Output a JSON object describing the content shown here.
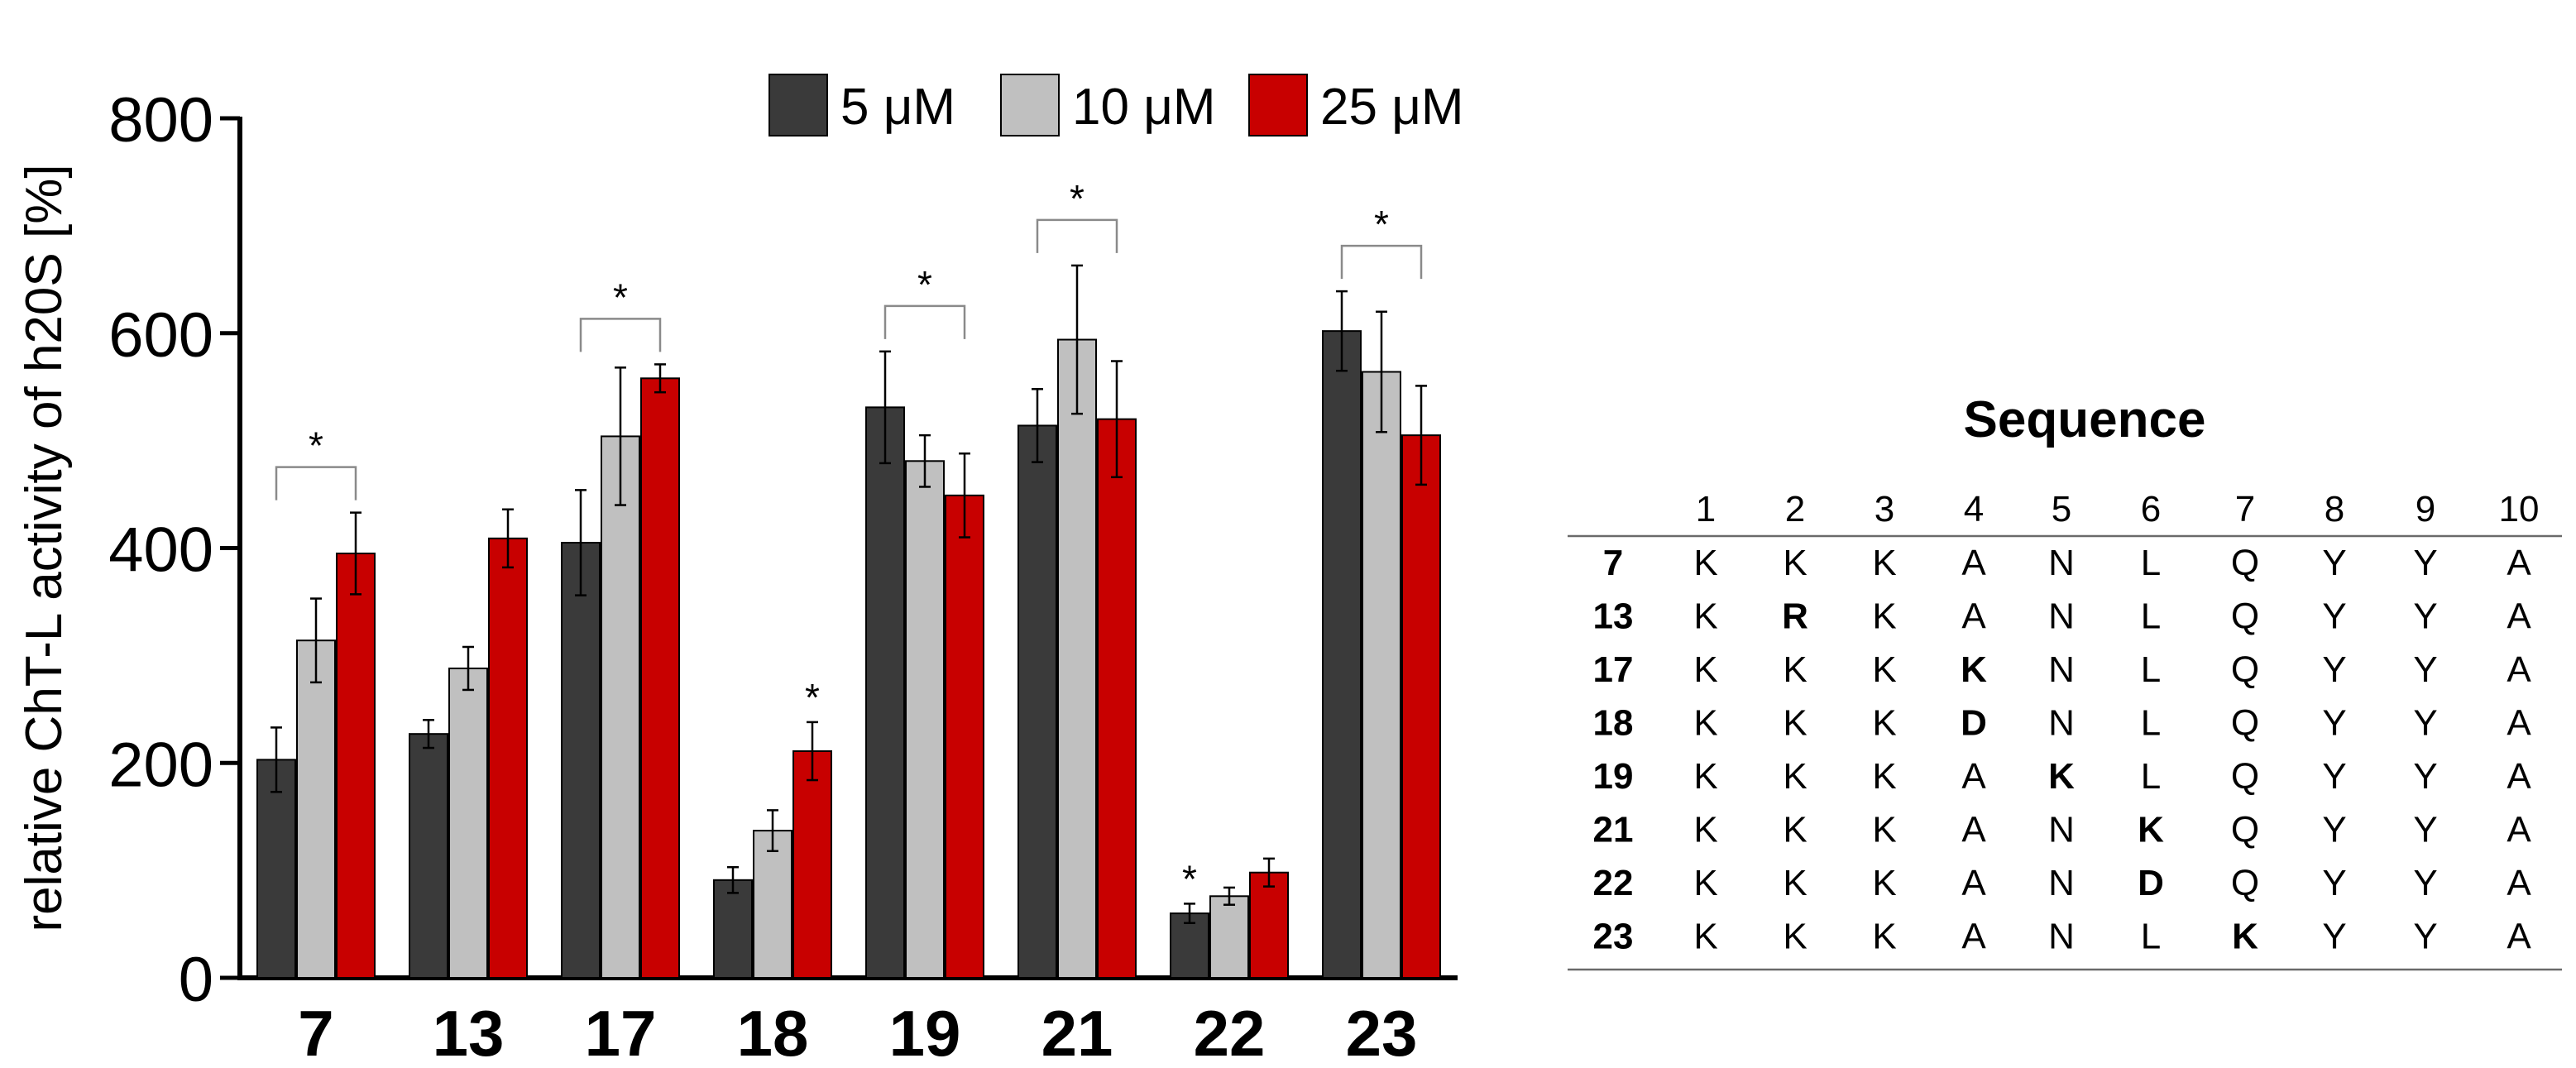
{
  "chart_data": {
    "type": "bar",
    "ylabel": "relative ChT-L activity of h20S [%]",
    "ylim": [
      0,
      800
    ],
    "yticks": [
      0,
      200,
      400,
      600,
      800
    ],
    "categories": [
      "7",
      "13",
      "17",
      "18",
      "19",
      "21",
      "22",
      "23"
    ],
    "series": [
      {
        "name": "5 μM",
        "color": "#3a3a3a",
        "values": [
          203,
          227,
          405,
          91,
          531,
          514,
          60,
          602
        ],
        "errors": [
          30,
          13,
          49,
          12,
          52,
          34,
          9,
          37
        ]
      },
      {
        "name": "10 μM",
        "color": "#c0c0c0",
        "values": [
          314,
          288,
          504,
          137,
          481,
          594,
          76,
          564
        ],
        "errors": [
          39,
          20,
          64,
          19,
          24,
          69,
          8,
          56
        ]
      },
      {
        "name": "25 μM",
        "color": "#c80000",
        "values": [
          395,
          409,
          558,
          211,
          449,
          520,
          98,
          505
        ],
        "errors": [
          38,
          27,
          13,
          27,
          39,
          54,
          13,
          46
        ]
      }
    ],
    "legend_position": "top",
    "significance": [
      {
        "category": "7",
        "type": "bracket",
        "label": "*"
      },
      {
        "category": "17",
        "type": "bracket",
        "label": "*"
      },
      {
        "category": "18",
        "type": "bar",
        "series": 2,
        "label": "*"
      },
      {
        "category": "19",
        "type": "bracket",
        "label": "*"
      },
      {
        "category": "21",
        "type": "bracket",
        "label": "*"
      },
      {
        "category": "22",
        "type": "bar",
        "series": 0,
        "label": "*"
      },
      {
        "category": "23",
        "type": "bracket",
        "label": "*"
      }
    ]
  },
  "sequence_table": {
    "title": "Sequence",
    "positions": [
      "1",
      "2",
      "3",
      "4",
      "5",
      "6",
      "7",
      "8",
      "9",
      "10"
    ],
    "rows": [
      {
        "id": "7",
        "residues": [
          "K",
          "K",
          "K",
          "A",
          "N",
          "L",
          "Q",
          "Y",
          "Y",
          "A"
        ],
        "bold": []
      },
      {
        "id": "13",
        "residues": [
          "K",
          "R",
          "K",
          "A",
          "N",
          "L",
          "Q",
          "Y",
          "Y",
          "A"
        ],
        "bold": [
          1
        ]
      },
      {
        "id": "17",
        "residues": [
          "K",
          "K",
          "K",
          "K",
          "N",
          "L",
          "Q",
          "Y",
          "Y",
          "A"
        ],
        "bold": [
          3
        ]
      },
      {
        "id": "18",
        "residues": [
          "K",
          "K",
          "K",
          "D",
          "N",
          "L",
          "Q",
          "Y",
          "Y",
          "A"
        ],
        "bold": [
          3
        ]
      },
      {
        "id": "19",
        "residues": [
          "K",
          "K",
          "K",
          "A",
          "K",
          "L",
          "Q",
          "Y",
          "Y",
          "A"
        ],
        "bold": [
          4
        ]
      },
      {
        "id": "21",
        "residues": [
          "K",
          "K",
          "K",
          "A",
          "N",
          "K",
          "Q",
          "Y",
          "Y",
          "A"
        ],
        "bold": [
          5
        ]
      },
      {
        "id": "22",
        "residues": [
          "K",
          "K",
          "K",
          "A",
          "N",
          "D",
          "Q",
          "Y",
          "Y",
          "A"
        ],
        "bold": [
          5
        ]
      },
      {
        "id": "23",
        "residues": [
          "K",
          "K",
          "K",
          "A",
          "N",
          "L",
          "K",
          "Y",
          "Y",
          "A"
        ],
        "bold": [
          6
        ]
      }
    ]
  }
}
